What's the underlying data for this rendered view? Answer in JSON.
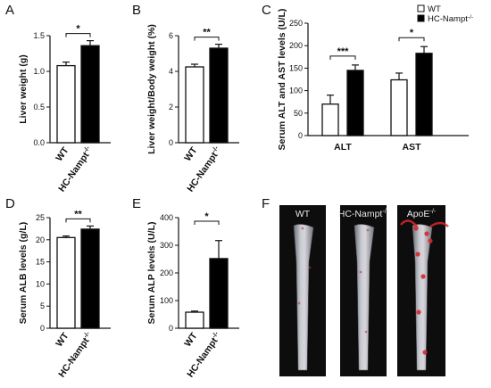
{
  "chart_data": [
    {
      "panel": "A",
      "type": "bar",
      "categories": [
        "WT",
        "HC-Nampt-/-"
      ],
      "series": [
        {
          "values": [
            1.08,
            1.36
          ],
          "errors": [
            0.05,
            0.07
          ]
        }
      ],
      "ylabel": "Liver weight (g)",
      "ylim": [
        0,
        1.5
      ],
      "yticks": [
        "0.0",
        "0.5",
        "1.0",
        "1.5"
      ],
      "annotations": [
        "*"
      ]
    },
    {
      "panel": "B",
      "type": "bar",
      "categories": [
        "WT",
        "HC-Nampt-/-"
      ],
      "series": [
        {
          "values": [
            4.25,
            5.3
          ],
          "errors": [
            0.15,
            0.22
          ]
        }
      ],
      "ylabel": "Liver weight/Body weight (%)",
      "ylim": [
        0,
        6
      ],
      "yticks": [
        "0",
        "2",
        "4",
        "6"
      ],
      "annotations": [
        "**"
      ]
    },
    {
      "panel": "C",
      "type": "bar",
      "categories": [
        "ALT",
        "AST"
      ],
      "series": [
        {
          "name": "WT",
          "values": [
            70,
            124
          ],
          "errors": [
            20,
            15
          ]
        },
        {
          "name": "HC-Nampt-/-",
          "values": [
            145,
            183
          ],
          "errors": [
            12,
            15
          ]
        }
      ],
      "ylabel": "Serum ALT and AST levels (U/L)",
      "ylim": [
        0,
        250
      ],
      "yticks": [
        "0",
        "50",
        "100",
        "150",
        "200",
        "250"
      ],
      "annotations": [
        "***",
        "*"
      ]
    },
    {
      "panel": "D",
      "type": "bar",
      "categories": [
        "WT",
        "HC-Nampt-/-"
      ],
      "series": [
        {
          "values": [
            20.5,
            22.4
          ],
          "errors": [
            0.35,
            0.7
          ]
        }
      ],
      "ylabel": "Serum ALB levels (g/L)",
      "ylim": [
        0,
        25
      ],
      "yticks": [
        "0",
        "5",
        "10",
        "15",
        "20",
        "25"
      ],
      "annotations": [
        "**"
      ]
    },
    {
      "panel": "E",
      "type": "bar",
      "categories": [
        "WT",
        "HC-Nampt-/-"
      ],
      "series": [
        {
          "values": [
            58,
            252
          ],
          "errors": [
            4,
            65
          ]
        }
      ],
      "ylabel": "Serum ALP levels (U/L)",
      "ylim": [
        0,
        400
      ],
      "yticks": [
        "0",
        "100",
        "200",
        "300",
        "400"
      ],
      "annotations": [
        "*"
      ]
    }
  ],
  "panel_f": {
    "letter": "F",
    "labels": [
      "WT",
      "HC-Nampt-/-",
      "ApoE-/-"
    ]
  },
  "colors": {
    "wt_fill": "#ffffff",
    "ko_fill": "#000000",
    "axis": "#111111",
    "photo_bg": "#0d0d0d"
  }
}
